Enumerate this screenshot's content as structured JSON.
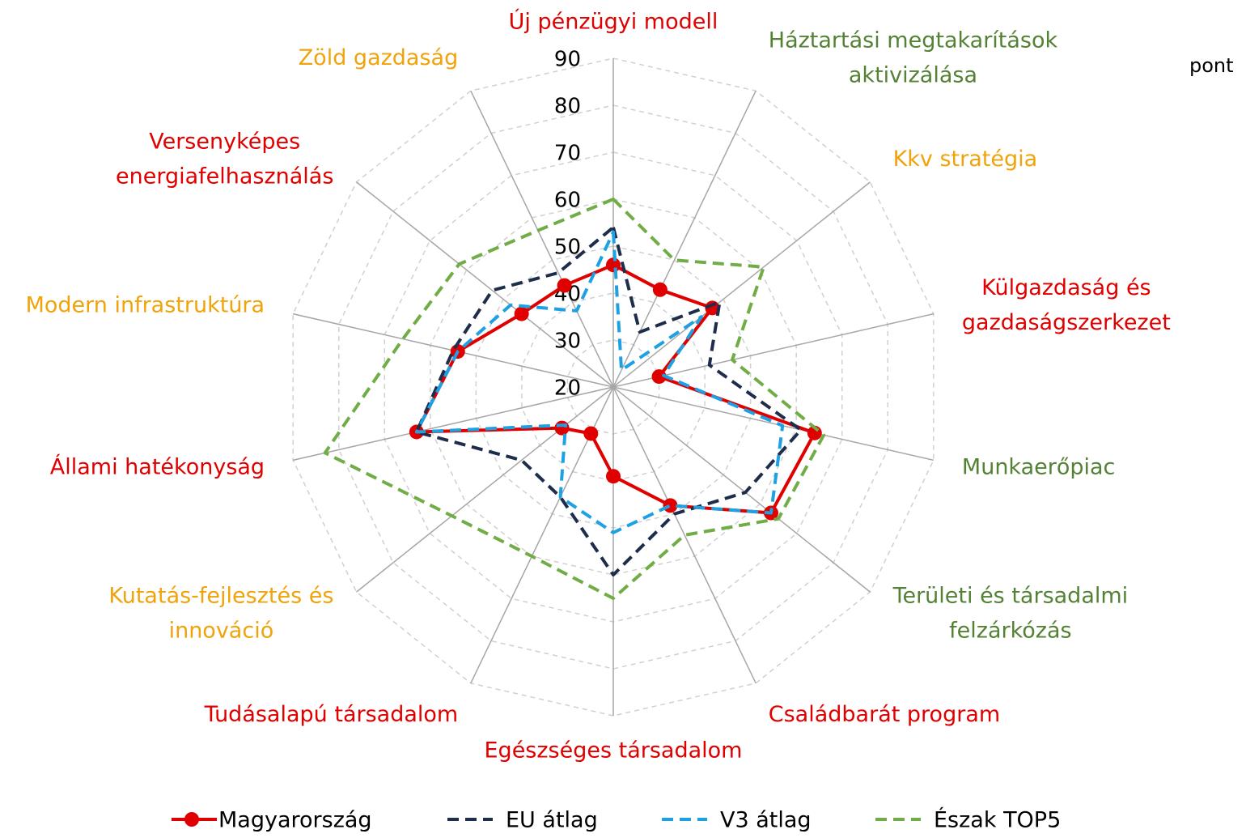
{
  "chart_data": {
    "type": "radar",
    "unit_label": "pont",
    "categories": [
      [
        "Új pénzügyi modell"
      ],
      [
        "Háztartási megtakarítások",
        "aktivizálása"
      ],
      [
        "Kkv stratégia"
      ],
      [
        "Külgazdaság és",
        "gazdaságszerkezet"
      ],
      [
        "Munkaerőpiac"
      ],
      [
        "Területi és társadalmi",
        "felzárkózás"
      ],
      [
        "Családbarát program"
      ],
      [
        "Egészséges társadalom"
      ],
      [
        "Tudásalapú társadalom"
      ],
      [
        "Kutatás-fejlesztés és",
        "innováció"
      ],
      [
        "Állami hatékonyság"
      ],
      [
        "Modern infrastruktúra"
      ],
      [
        "Versenyképes",
        "energiafelhasználás"
      ],
      [
        "Zöld gazdaság"
      ]
    ],
    "category_colors": [
      "#e00000",
      "#548235",
      "#f0a30a",
      "#e00000",
      "#548235",
      "#548235",
      "#e00000",
      "#e00000",
      "#e00000",
      "#f0a30a",
      "#e00000",
      "#f0a30a",
      "#e00000",
      "#f0a30a"
    ],
    "ylim": [
      20,
      90
    ],
    "yticks": [
      20,
      30,
      40,
      50,
      60,
      70,
      80,
      90
    ],
    "grid": true,
    "series": [
      {
        "name": "Magyarország",
        "color": "#e00000",
        "dash": false,
        "marker": true,
        "values": [
          46,
          43,
          47,
          30,
          64,
          63,
          48,
          39,
          31,
          34,
          63,
          54,
          45,
          44
        ]
      },
      {
        "name": "EU átlag",
        "color": "#1f2d4d",
        "dash": true,
        "marker": false,
        "values": [
          54,
          33,
          49,
          41,
          61,
          56,
          50,
          60,
          46,
          45,
          63,
          55,
          53,
          47
        ]
      },
      {
        "name": "V3 átlag",
        "color": "#1da1e2",
        "dash": true,
        "marker": false,
        "values": [
          53,
          24,
          44,
          31,
          57,
          63,
          48,
          51,
          46,
          33,
          63,
          54,
          48,
          38
        ]
      },
      {
        "name": "Észak TOP5",
        "color": "#70ad47",
        "dash": true,
        "marker": false,
        "values": [
          60,
          50,
          61,
          46,
          66,
          65,
          55,
          65,
          60,
          64,
          83,
          66,
          62,
          57
        ]
      }
    ],
    "legend": "bottom"
  }
}
